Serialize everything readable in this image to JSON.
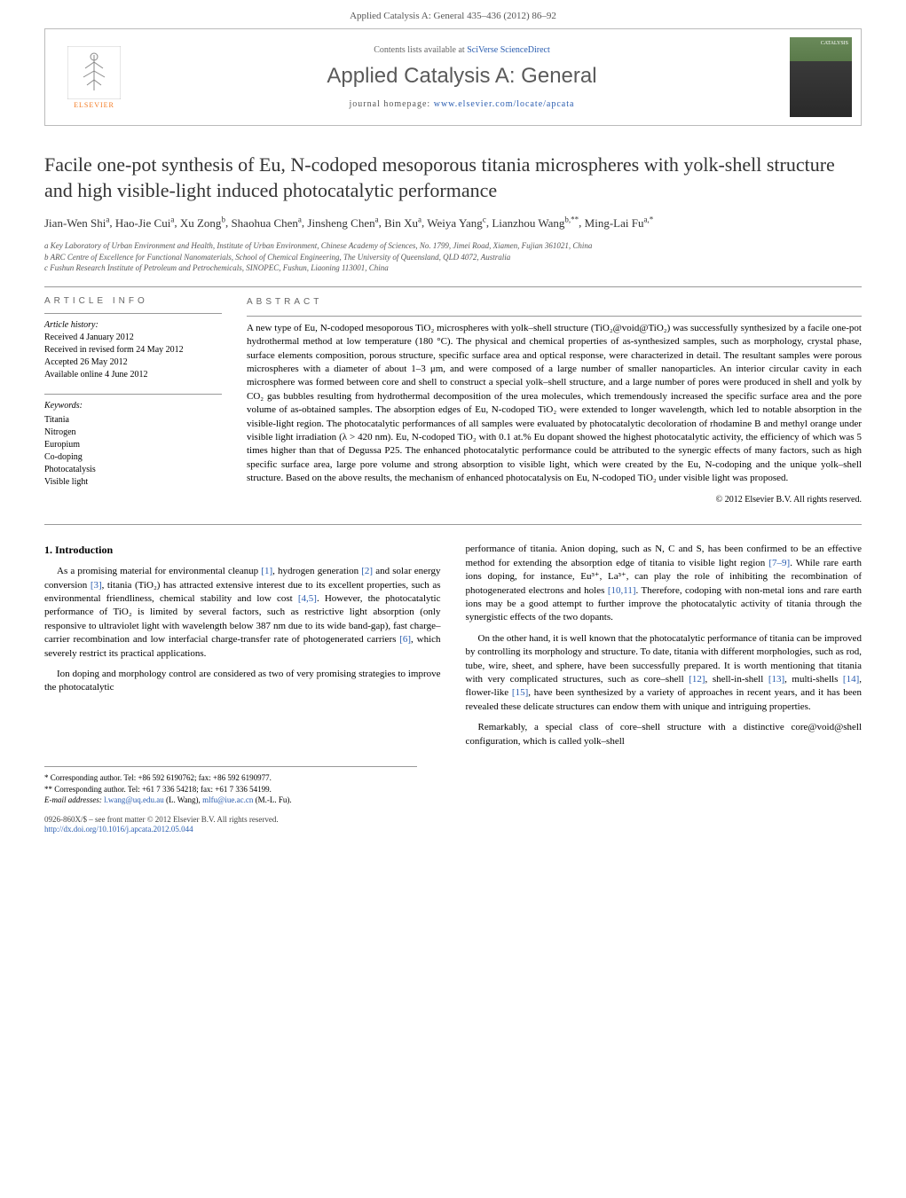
{
  "header": {
    "running_head": "Applied Catalysis A: General 435–436 (2012) 86–92"
  },
  "banner": {
    "contents_prefix": "Contents lists available at ",
    "contents_link": "SciVerse ScienceDirect",
    "journal_name": "Applied Catalysis A: General",
    "homepage_prefix": "journal homepage: ",
    "homepage_url": "www.elsevier.com/locate/apcata",
    "publisher_text": "ELSEVIER",
    "cover_label": "CATALYSIS"
  },
  "title": "Facile one-pot synthesis of Eu, N-codoped mesoporous titania microspheres with yolk-shell structure and high visible-light induced photocatalytic performance",
  "authors": [
    {
      "name": "Jian-Wen Shi",
      "aff": "a"
    },
    {
      "name": "Hao-Jie Cui",
      "aff": "a"
    },
    {
      "name": "Xu Zong",
      "aff": "b"
    },
    {
      "name": "Shaohua Chen",
      "aff": "a"
    },
    {
      "name": "Jinsheng Chen",
      "aff": "a"
    },
    {
      "name": "Bin Xu",
      "aff": "a"
    },
    {
      "name": "Weiya Yang",
      "aff": "c"
    },
    {
      "name": "Lianzhou Wang",
      "aff": "b,**"
    },
    {
      "name": "Ming-Lai Fu",
      "aff": "a,*"
    }
  ],
  "affiliations": [
    "a Key Laboratory of Urban Environment and Health, Institute of Urban Environment, Chinese Academy of Sciences, No. 1799, Jimei Road, Xiamen, Fujian 361021, China",
    "b ARC Centre of Excellence for Functional Nanomaterials, School of Chemical Engineering, The University of Queensland, QLD 4072, Australia",
    "c Fushun Research Institute of Petroleum and Petrochemicals, SINOPEC, Fushun, Liaoning 113001, China"
  ],
  "article_info": {
    "heading": "ARTICLE INFO",
    "history_label": "Article history:",
    "history": [
      "Received 4 January 2012",
      "Received in revised form 24 May 2012",
      "Accepted 26 May 2012",
      "Available online 4 June 2012"
    ],
    "keywords_label": "Keywords:",
    "keywords": [
      "Titania",
      "Nitrogen",
      "Europium",
      "Co-doping",
      "Photocatalysis",
      "Visible light"
    ]
  },
  "abstract": {
    "heading": "ABSTRACT",
    "text": "A new type of Eu, N-codoped mesoporous TiO₂ microspheres with yolk–shell structure (TiO₂@void@TiO₂) was successfully synthesized by a facile one-pot hydrothermal method at low temperature (180 °C). The physical and chemical properties of as-synthesized samples, such as morphology, crystal phase, surface elements composition, porous structure, specific surface area and optical response, were characterized in detail. The resultant samples were porous microspheres with a diameter of about 1–3 μm, and were composed of a large number of smaller nanoparticles. An interior circular cavity in each microsphere was formed between core and shell to construct a special yolk–shell structure, and a large number of pores were produced in shell and yolk by CO₂ gas bubbles resulting from hydrothermal decomposition of the urea molecules, which tremendously increased the specific surface area and the pore volume of as-obtained samples. The absorption edges of Eu, N-codoped TiO₂ were extended to longer wavelength, which led to notable absorption in the visible-light region. The photocatalytic performances of all samples were evaluated by photocatalytic decoloration of rhodamine B and methyl orange under visible light irradiation (λ > 420 nm). Eu, N-codoped TiO₂ with 0.1 at.% Eu dopant showed the highest photocatalytic activity, the efficiency of which was 5 times higher than that of Degussa P25. The enhanced photocatalytic performance could be attributed to the synergic effects of many factors, such as high specific surface area, large pore volume and strong absorption to visible light, which were created by the Eu, N-codoping and the unique yolk–shell structure. Based on the above results, the mechanism of enhanced photocatalysis on Eu, N-codoped TiO₂ under visible light was proposed.",
    "copyright": "© 2012 Elsevier B.V. All rights reserved."
  },
  "introduction": {
    "heading": "1. Introduction",
    "p1_pre": "As a promising material for environmental cleanup ",
    "p1_ref1": "[1]",
    "p1_mid1": ", hydrogen generation ",
    "p1_ref2": "[2]",
    "p1_mid2": " and solar energy conversion ",
    "p1_ref3": "[3]",
    "p1_mid3": ", titania (TiO₂) has attracted extensive interest due to its excellent properties, such as environmental friendliness, chemical stability and low cost ",
    "p1_ref4": "[4,5]",
    "p1_mid4": ". However, the photocatalytic performance of TiO₂ is limited by several factors, such as restrictive light absorption (only responsive to ultraviolet light with wavelength below 387 nm due to its wide band-gap), fast charge–carrier recombination and low interfacial charge-transfer rate of photogenerated carriers ",
    "p1_ref5": "[6]",
    "p1_end": ", which severely restrict its practical applications.",
    "p2": "Ion doping and morphology control are considered as two of very promising strategies to improve the photocatalytic",
    "col2_p1_pre": "performance of titania. Anion doping, such as N, C and S, has been confirmed to be an effective method for extending the absorption edge of titania to visible light region ",
    "col2_ref1": "[7–9]",
    "col2_p1_mid1": ". While rare earth ions doping, for instance, Eu³⁺, La³⁺, can play the role of inhibiting the recombination of photogenerated electrons and holes ",
    "col2_ref2": "[10,11]",
    "col2_p1_end": ". Therefore, codoping with non-metal ions and rare earth ions may be a good attempt to further improve the photocatalytic activity of titania through the synergistic effects of the two dopants.",
    "col2_p2_pre": "On the other hand, it is well known that the photocatalytic performance of titania can be improved by controlling its morphology and structure. To date, titania with different morphologies, such as rod, tube, wire, sheet, and sphere, have been successfully prepared. It is worth mentioning that titania with very complicated structures, such as core–shell ",
    "col2_ref3": "[12]",
    "col2_p2_mid1": ", shell-in-shell ",
    "col2_ref4": "[13]",
    "col2_p2_mid2": ", multi-shells ",
    "col2_ref5": "[14]",
    "col2_p2_mid3": ", flower-like ",
    "col2_ref6": "[15]",
    "col2_p2_end": ", have been synthesized by a variety of approaches in recent years, and it has been revealed these delicate structures can endow them with unique and intriguing properties.",
    "col2_p3": "Remarkably, a special class of core–shell structure with a distinctive core@void@shell configuration, which is called yolk–shell"
  },
  "footnotes": {
    "star": "* Corresponding author. Tel: +86 592 6190762; fax: +86 592 6190977.",
    "dstar": "** Corresponding author. Tel: +61 7 336 54218; fax: +61 7 336 54199.",
    "email_label": "E-mail addresses: ",
    "email1": "l.wang@uq.edu.au",
    "email1_person": " (L. Wang), ",
    "email2": "mlfu@iue.ac.cn",
    "email2_person": " (M.-L. Fu)."
  },
  "footer": {
    "line1": "0926-860X/$ – see front matter © 2012 Elsevier B.V. All rights reserved.",
    "doi_url": "http://dx.doi.org/10.1016/j.apcata.2012.05.044"
  },
  "colors": {
    "link": "#2a5db0",
    "elsevier_orange": "#f47920",
    "text_gray": "#555555",
    "rule_gray": "#999999",
    "body_text": "#000000"
  },
  "typography": {
    "running_head_pt": 11,
    "journal_name_pt": 24,
    "title_pt": 22,
    "authors_pt": 13,
    "affiliations_pt": 9,
    "section_heading_pt": 10,
    "abstract_body_pt": 11,
    "body_pt": 11,
    "footnotes_pt": 9
  }
}
